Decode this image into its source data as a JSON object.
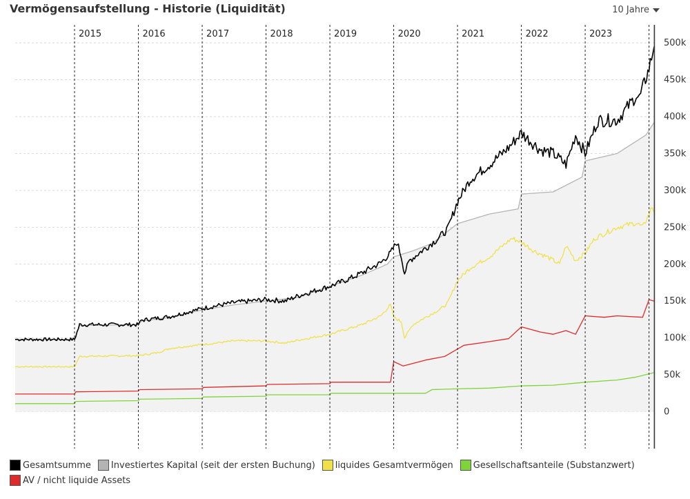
{
  "page": {
    "title": "Vermögensaufstellung - Historie (Liquidität)",
    "range_selector": "10 Jahre"
  },
  "chart_data": {
    "type": "line",
    "title": "Vermögensaufstellung - Historie (Liquidität)",
    "x_range": [
      2014.07,
      2024.08
    ],
    "ylim": [
      -50000,
      530000
    ],
    "y_ticks": [
      0,
      50000,
      100000,
      150000,
      200000,
      250000,
      300000,
      350000,
      400000,
      450000,
      500000
    ],
    "y_tick_labels": [
      "0",
      "50k",
      "100k",
      "150k",
      "200k",
      "250k",
      "300k",
      "350k",
      "400k",
      "450k",
      "500k"
    ],
    "year_markers": [
      2015,
      2016,
      2017,
      2018,
      2019,
      2020,
      2021,
      2022,
      2023,
      2024
    ],
    "year_labels": [
      "2015",
      "2016",
      "2017",
      "2018",
      "2019",
      "2020",
      "2021",
      "2022",
      "2023"
    ],
    "current_marker": 2024.0,
    "grid": true,
    "legend_position": "bottom",
    "series": [
      {
        "name": "Investiertes Kapital (seit der ersten Buchung)",
        "color": "#b4b4b4",
        "fill": "#f2f2f2",
        "points": [
          [
            2014.07,
            98000
          ],
          [
            2015.0,
            98000
          ],
          [
            2015.08,
            117000
          ],
          [
            2016.0,
            118000
          ],
          [
            2016.05,
            123000
          ],
          [
            2016.5,
            128000
          ],
          [
            2017.0,
            138000
          ],
          [
            2017.5,
            145000
          ],
          [
            2018.0,
            150000
          ],
          [
            2018.5,
            155000
          ],
          [
            2019.0,
            170000
          ],
          [
            2019.5,
            185000
          ],
          [
            2019.9,
            200000
          ],
          [
            2020.0,
            210000
          ],
          [
            2020.3,
            218000
          ],
          [
            2020.6,
            228000
          ],
          [
            2021.0,
            255000
          ],
          [
            2021.5,
            268000
          ],
          [
            2021.95,
            275000
          ],
          [
            2022.0,
            295000
          ],
          [
            2022.5,
            298000
          ],
          [
            2022.95,
            318000
          ],
          [
            2023.0,
            340000
          ],
          [
            2023.5,
            350000
          ],
          [
            2023.95,
            375000
          ],
          [
            2024.08,
            392000
          ]
        ]
      },
      {
        "name": "Gesamtsumme",
        "color": "#000000",
        "points": [
          [
            2014.07,
            98000
          ],
          [
            2015.0,
            98000
          ],
          [
            2015.08,
            118000
          ],
          [
            2016.0,
            118000
          ],
          [
            2016.05,
            124000
          ],
          [
            2016.5,
            129000
          ],
          [
            2017.0,
            140000
          ],
          [
            2017.5,
            148000
          ],
          [
            2018.0,
            152000
          ],
          [
            2018.3,
            150000
          ],
          [
            2018.5,
            157000
          ],
          [
            2019.0,
            170000
          ],
          [
            2019.3,
            180000
          ],
          [
            2019.5,
            188000
          ],
          [
            2019.8,
            202000
          ],
          [
            2019.95,
            215000
          ],
          [
            2020.05,
            230000
          ],
          [
            2020.12,
            210000
          ],
          [
            2020.17,
            188000
          ],
          [
            2020.25,
            205000
          ],
          [
            2020.5,
            222000
          ],
          [
            2020.7,
            235000
          ],
          [
            2020.85,
            248000
          ],
          [
            2021.0,
            285000
          ],
          [
            2021.2,
            315000
          ],
          [
            2021.5,
            335000
          ],
          [
            2021.8,
            358000
          ],
          [
            2022.0,
            378000
          ],
          [
            2022.1,
            370000
          ],
          [
            2022.3,
            355000
          ],
          [
            2022.5,
            350000
          ],
          [
            2022.7,
            335000
          ],
          [
            2022.85,
            375000
          ],
          [
            2023.0,
            350000
          ],
          [
            2023.2,
            395000
          ],
          [
            2023.5,
            395000
          ],
          [
            2023.8,
            428000
          ],
          [
            2023.85,
            425000
          ],
          [
            2024.0,
            465000
          ],
          [
            2024.08,
            495000
          ]
        ]
      },
      {
        "name": "liquides Gesamtvermögen",
        "color": "#f0e14a",
        "points": [
          [
            2014.07,
            61000
          ],
          [
            2015.0,
            61000
          ],
          [
            2015.08,
            75000
          ],
          [
            2016.0,
            76000
          ],
          [
            2016.3,
            80000
          ],
          [
            2016.5,
            86000
          ],
          [
            2017.0,
            91000
          ],
          [
            2017.5,
            96000
          ],
          [
            2018.0,
            96000
          ],
          [
            2018.3,
            93000
          ],
          [
            2018.5,
            97000
          ],
          [
            2019.0,
            105000
          ],
          [
            2019.5,
            118000
          ],
          [
            2019.8,
            130000
          ],
          [
            2019.95,
            145000
          ],
          [
            2020.0,
            128000
          ],
          [
            2020.12,
            122000
          ],
          [
            2020.17,
            100000
          ],
          [
            2020.3,
            118000
          ],
          [
            2020.5,
            128000
          ],
          [
            2020.75,
            140000
          ],
          [
            2020.85,
            148000
          ],
          [
            2021.0,
            178000
          ],
          [
            2021.2,
            195000
          ],
          [
            2021.5,
            210000
          ],
          [
            2021.85,
            235000
          ],
          [
            2022.0,
            230000
          ],
          [
            2022.2,
            218000
          ],
          [
            2022.4,
            210000
          ],
          [
            2022.6,
            200000
          ],
          [
            2022.7,
            225000
          ],
          [
            2022.85,
            205000
          ],
          [
            2023.0,
            215000
          ],
          [
            2023.15,
            235000
          ],
          [
            2023.5,
            250000
          ],
          [
            2023.8,
            256000
          ],
          [
            2023.9,
            250000
          ],
          [
            2024.0,
            268000
          ],
          [
            2024.05,
            278000
          ],
          [
            2024.08,
            270000
          ]
        ]
      },
      {
        "name": "Gesellschaftsanteile (Substanzwert)",
        "color": "#7ed43a",
        "points": [
          [
            2014.07,
            11000
          ],
          [
            2015.0,
            11000
          ],
          [
            2015.02,
            14000
          ],
          [
            2016.0,
            15000
          ],
          [
            2016.02,
            17000
          ],
          [
            2017.0,
            18000
          ],
          [
            2017.02,
            20000
          ],
          [
            2018.0,
            21000
          ],
          [
            2018.02,
            23000
          ],
          [
            2019.0,
            23000
          ],
          [
            2019.02,
            25000
          ],
          [
            2020.0,
            25000
          ],
          [
            2020.5,
            25000
          ],
          [
            2020.6,
            30000
          ],
          [
            2021.0,
            31000
          ],
          [
            2021.5,
            32000
          ],
          [
            2022.0,
            35000
          ],
          [
            2022.5,
            36000
          ],
          [
            2023.0,
            40000
          ],
          [
            2023.5,
            43000
          ],
          [
            2023.8,
            47000
          ],
          [
            2024.08,
            53000
          ]
        ]
      },
      {
        "name": "AV / nicht liquide Assets",
        "color": "#e02a2a",
        "points": [
          [
            2014.07,
            24000
          ],
          [
            2015.0,
            24000
          ],
          [
            2015.02,
            27000
          ],
          [
            2016.0,
            28000
          ],
          [
            2016.02,
            30000
          ],
          [
            2017.0,
            31000
          ],
          [
            2017.02,
            33000
          ],
          [
            2018.0,
            35000
          ],
          [
            2018.02,
            37000
          ],
          [
            2019.0,
            38000
          ],
          [
            2019.02,
            40000
          ],
          [
            2019.95,
            40000
          ],
          [
            2020.0,
            68000
          ],
          [
            2020.15,
            62000
          ],
          [
            2020.5,
            70000
          ],
          [
            2020.8,
            75000
          ],
          [
            2021.0,
            85000
          ],
          [
            2021.1,
            90000
          ],
          [
            2021.5,
            95000
          ],
          [
            2021.8,
            99000
          ],
          [
            2022.0,
            115000
          ],
          [
            2022.3,
            108000
          ],
          [
            2022.5,
            105000
          ],
          [
            2022.7,
            110000
          ],
          [
            2022.85,
            105000
          ],
          [
            2023.0,
            130000
          ],
          [
            2023.3,
            128000
          ],
          [
            2023.5,
            130000
          ],
          [
            2023.9,
            128000
          ],
          [
            2024.0,
            152000
          ],
          [
            2024.08,
            150000
          ]
        ]
      }
    ]
  },
  "legend": {
    "items": [
      {
        "label": "Gesamtsumme",
        "color": "#000000"
      },
      {
        "label": "Investiertes Kapital (seit der ersten Buchung)",
        "color": "#b4b4b4"
      },
      {
        "label": "liquides Gesamtvermögen",
        "color": "#f0e14a"
      },
      {
        "label": "Gesellschaftsanteile (Substanzwert)",
        "color": "#7ed43a"
      },
      {
        "label": "AV / nicht liquide Assets",
        "color": "#e02a2a"
      }
    ]
  }
}
